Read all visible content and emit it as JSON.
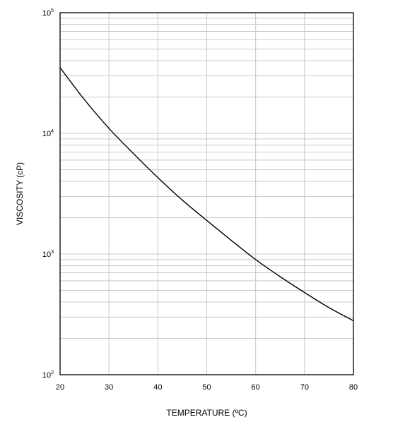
{
  "chart_data": {
    "type": "line",
    "title": "",
    "xlabel": "TEMPERATURE (ºC)",
    "ylabel": "VISCOSITY (cP)",
    "xlim": [
      20,
      80
    ],
    "ylim": [
      100,
      100000
    ],
    "y_scale": "log",
    "grid": true,
    "x_ticks": [
      20,
      30,
      40,
      50,
      60,
      70,
      80
    ],
    "y_ticks": [
      {
        "base": "10",
        "exp": "2",
        "value": 100
      },
      {
        "base": "10",
        "exp": "3",
        "value": 1000
      },
      {
        "base": "10",
        "exp": "4",
        "value": 10000
      },
      {
        "base": "10",
        "exp": "5",
        "value": 100000
      }
    ],
    "series": [
      {
        "color": "#000000",
        "x": [
          20,
          25,
          30,
          35,
          40,
          45,
          50,
          55,
          60,
          65,
          70,
          75,
          80
        ],
        "y": [
          35000,
          19000,
          11000,
          6800,
          4300,
          2800,
          1900,
          1300,
          900,
          650,
          480,
          360,
          280
        ]
      }
    ]
  }
}
